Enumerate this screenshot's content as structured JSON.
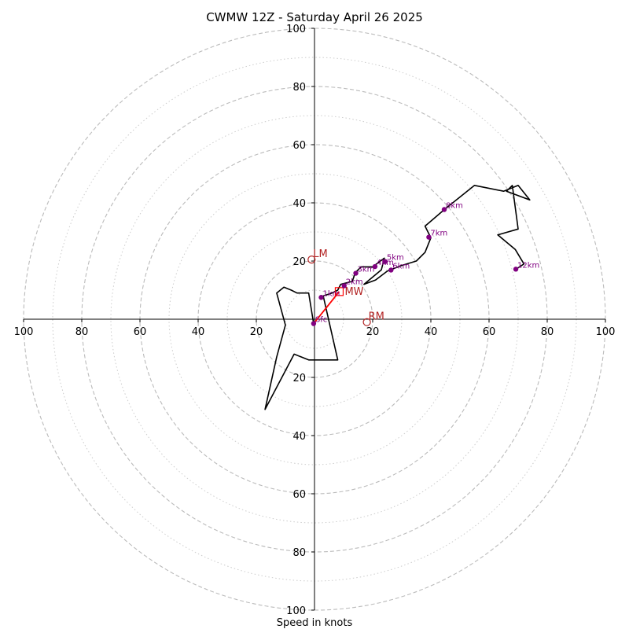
{
  "chart_data": {
    "type": "hodograph",
    "title": "CWMW 12Z - Saturday April 26 2025",
    "xlabel": "Speed in knots",
    "range": [
      -100,
      100
    ],
    "ring_values_dashed": [
      20,
      40,
      60,
      80,
      100
    ],
    "ring_values_dotted": [
      10,
      30,
      50,
      70,
      90
    ],
    "x_tick_labels": [
      "100",
      "80",
      "60",
      "40",
      "20",
      "20",
      "40",
      "60",
      "80",
      "100"
    ],
    "x_tick_values": [
      -100,
      -80,
      -60,
      -40,
      -20,
      20,
      40,
      60,
      80,
      100
    ],
    "y_tick_labels": [
      "100",
      "80",
      "60",
      "40",
      "20",
      "20",
      "40",
      "60",
      "80",
      "100"
    ],
    "y_tick_values": [
      100,
      80,
      60,
      40,
      20,
      -20,
      -40,
      -60,
      -80,
      -100
    ],
    "hodograph_trace": [
      [
        -0.3,
        -1.5
      ],
      [
        -2,
        9
      ],
      [
        -6,
        9
      ],
      [
        -8,
        10
      ],
      [
        -10.5,
        11
      ],
      [
        -13,
        9
      ],
      [
        -10,
        -2
      ],
      [
        -13,
        -13
      ],
      [
        -17,
        -31
      ],
      [
        -7,
        -12
      ],
      [
        -2,
        -14
      ],
      [
        8,
        -14
      ],
      [
        3,
        8
      ],
      [
        6,
        9
      ],
      [
        8,
        10
      ],
      [
        9,
        12
      ],
      [
        13,
        13
      ],
      [
        14,
        16
      ],
      [
        16,
        18
      ],
      [
        20,
        18
      ],
      [
        24,
        21
      ],
      [
        23,
        17
      ],
      [
        17,
        12
      ],
      [
        21,
        13.5
      ],
      [
        25,
        16.5
      ],
      [
        30,
        18.5
      ],
      [
        35,
        20
      ],
      [
        38,
        23
      ],
      [
        40,
        28
      ],
      [
        38,
        32
      ],
      [
        45,
        38
      ],
      [
        55,
        46
      ],
      [
        65,
        44
      ],
      [
        70,
        46
      ],
      [
        74,
        41
      ],
      [
        66,
        44
      ],
      [
        68,
        46
      ],
      [
        70,
        31
      ],
      [
        63,
        29
      ],
      [
        69,
        24
      ],
      [
        72,
        19
      ],
      [
        69,
        17
      ]
    ],
    "height_markers": [
      {
        "label": "Sfc",
        "u": -0.3,
        "v": -1.5
      },
      {
        "label": "1km",
        "u": 2.3,
        "v": 7.5
      },
      {
        "label": "2km",
        "u": 10.2,
        "v": 11.5
      },
      {
        "label": "3km",
        "u": 14.2,
        "v": 15.8
      },
      {
        "label": "4km",
        "u": 20.8,
        "v": 18.1
      },
      {
        "label": "5km",
        "u": 24.3,
        "v": 19.8
      },
      {
        "label": "6km",
        "u": 26.3,
        "v": 16.9
      },
      {
        "label": "7km",
        "u": 39.3,
        "v": 28.2
      },
      {
        "label": "8km",
        "u": 44.6,
        "v": 37.7
      },
      {
        "label": "12km",
        "u": 69.2,
        "v": 17.2
      }
    ],
    "mean_wind": {
      "label": "MW",
      "u": 8.5,
      "v": 9.5
    },
    "mean_wind_vector_color": "#ff0000",
    "left_mover": {
      "label": "LM",
      "u": -1.0,
      "v": 20.5
    },
    "right_mover": {
      "label": "RM",
      "u": 18.0,
      "v": -1.0
    },
    "colors": {
      "trace": "#000000",
      "markers": "#800080",
      "storm_motion": "#b22222",
      "grid": "#bbbbbb"
    }
  }
}
